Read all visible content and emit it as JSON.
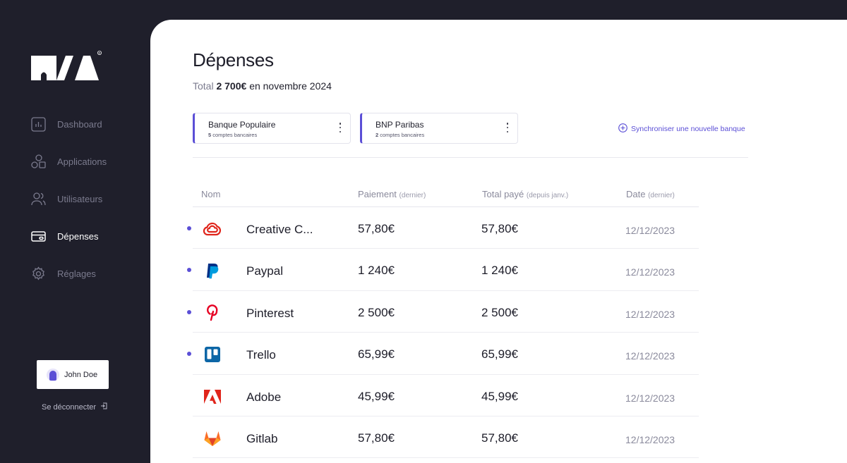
{
  "brand": {
    "accent": "#5b4fd6",
    "sidebar_bg": "#1f1f2b"
  },
  "nav": [
    {
      "label": "Dashboard",
      "icon": "chart-icon",
      "active": false
    },
    {
      "label": "Applications",
      "icon": "shapes-icon",
      "active": false
    },
    {
      "label": "Utilisateurs",
      "icon": "users-icon",
      "active": false
    },
    {
      "label": "Dépenses",
      "icon": "card-icon",
      "active": true
    },
    {
      "label": "Réglages",
      "icon": "gear-icon",
      "active": false
    }
  ],
  "user": {
    "name": "John Doe",
    "logout_label": "Se déconnecter"
  },
  "page": {
    "title": "Dépenses",
    "total_prefix": "Total",
    "total_amount": "2 700€",
    "total_suffix": "en novembre 2024"
  },
  "banks": [
    {
      "name": "Banque Populaire",
      "count": "5",
      "count_label": "comptes bancaires"
    },
    {
      "name": "BNP Paribas",
      "count": "2",
      "count_label": "comptes bancaires"
    }
  ],
  "sync_label": "Synchroniser une nouvelle banque",
  "table": {
    "headers": {
      "name": "Nom",
      "payment": "Paiement",
      "payment_note": "(dernier)",
      "total": "Total payé",
      "total_note": "(depuis janv.)",
      "date": "Date",
      "date_note": "(dernier)"
    },
    "rows": [
      {
        "name": "Creative C...",
        "logo": "creative-cloud-icon",
        "payment": "57,80€",
        "total": "57,80€",
        "date": "12/12/2023",
        "unread": true
      },
      {
        "name": "Paypal",
        "logo": "paypal-icon",
        "payment": "1 240€",
        "total": "1 240€",
        "date": "12/12/2023",
        "unread": true
      },
      {
        "name": "Pinterest",
        "logo": "pinterest-icon",
        "payment": "2 500€",
        "total": "2 500€",
        "date": "12/12/2023",
        "unread": true
      },
      {
        "name": "Trello",
        "logo": "trello-icon",
        "payment": "65,99€",
        "total": "65,99€",
        "date": "12/12/2023",
        "unread": true
      },
      {
        "name": "Adobe",
        "logo": "adobe-icon",
        "payment": "45,99€",
        "total": "45,99€",
        "date": "12/12/2023",
        "unread": false
      },
      {
        "name": "Gitlab",
        "logo": "gitlab-icon",
        "payment": "57,80€",
        "total": "57,80€",
        "date": "12/12/2023",
        "unread": false
      }
    ]
  }
}
